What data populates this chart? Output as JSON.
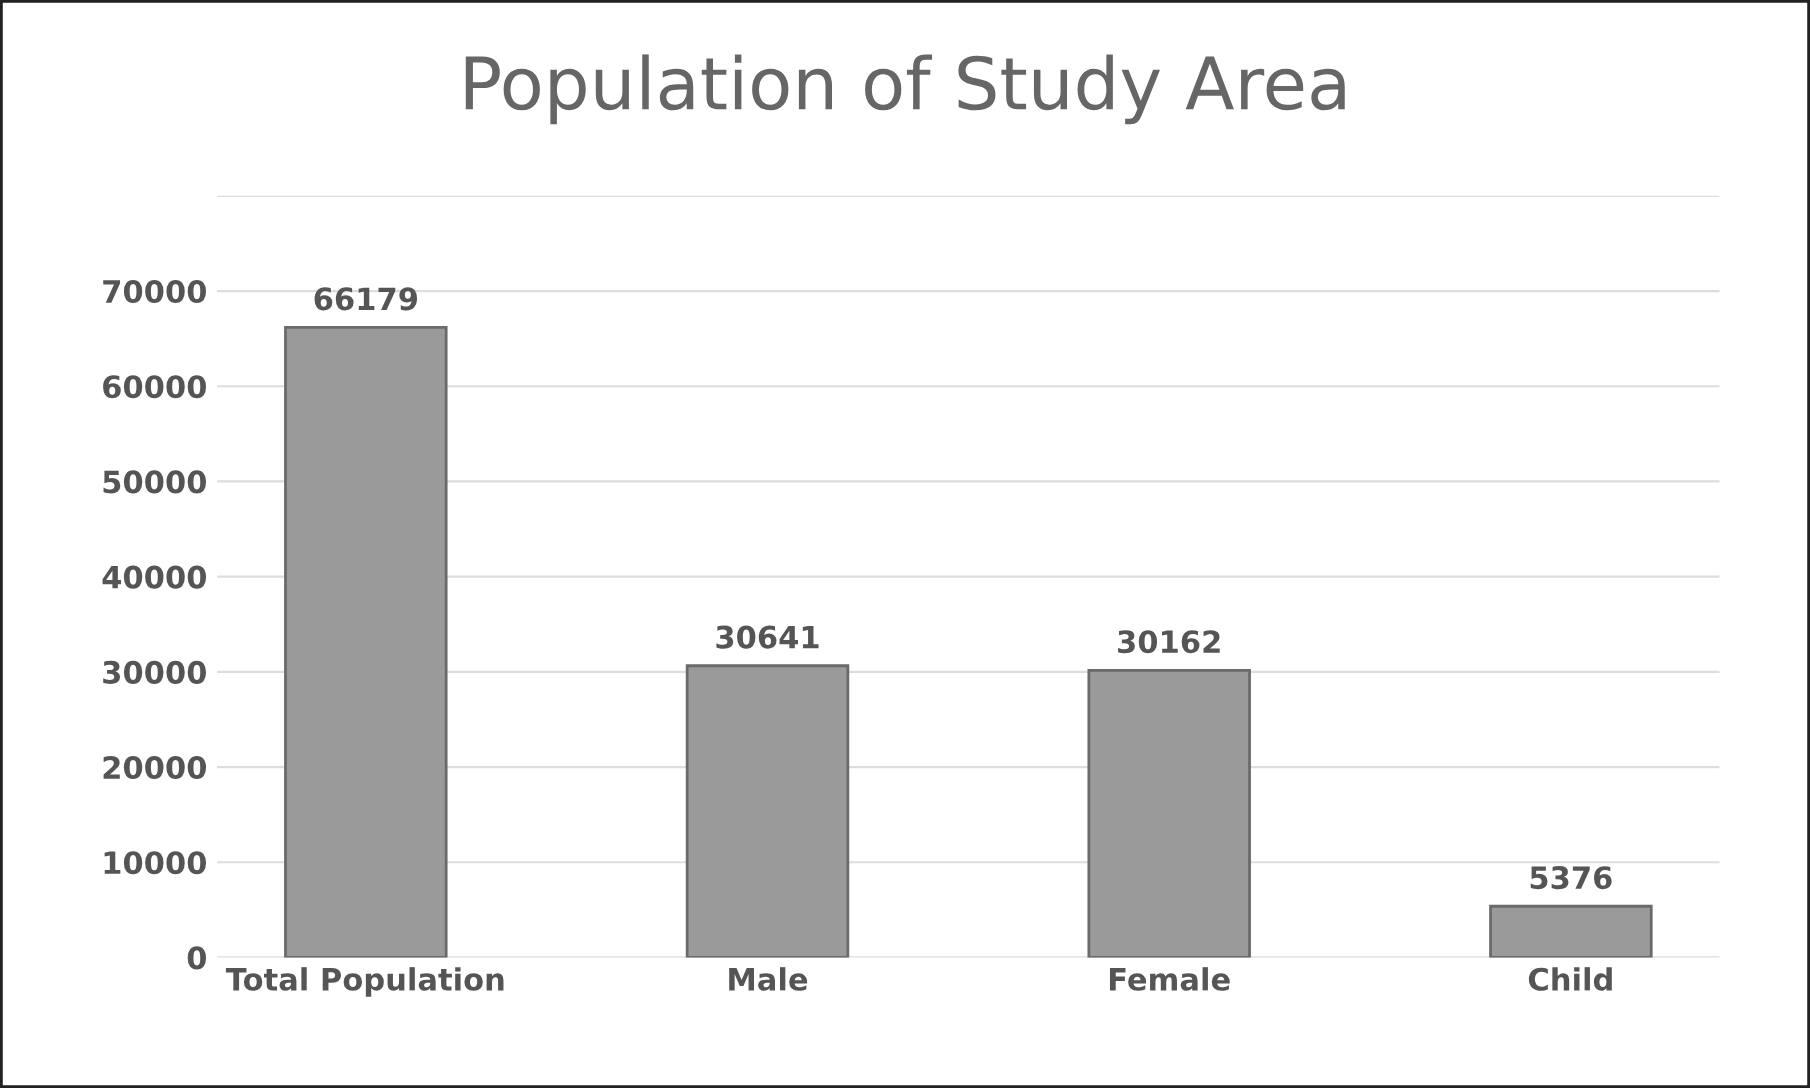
{
  "chart_data": {
    "type": "bar",
    "title": "Population of Study Area",
    "categories": [
      "Total Population",
      "Male",
      "Female",
      "Child"
    ],
    "values": [
      66179,
      30641,
      30162,
      5376
    ],
    "color": "#9a9a9a",
    "ylim": [
      0,
      80000
    ],
    "yticks": [
      0,
      10000,
      20000,
      30000,
      40000,
      50000,
      60000,
      70000,
      {
        "value": 80000,
        "label": null
      }
    ],
    "grid": "y",
    "data_labels": true
  }
}
